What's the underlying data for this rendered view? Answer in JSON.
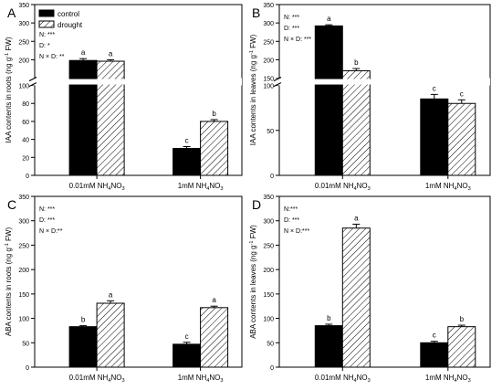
{
  "colors": {
    "control": "#000000",
    "drought_hatch": "#000000",
    "background": "#ffffff"
  },
  "legend": {
    "control": "control",
    "drought": "drought"
  },
  "chart_data": [
    {
      "panel": "A",
      "type": "bar",
      "ylabel": "IAA contents in roots (ng g-1 FW)",
      "categories": [
        "0.01mM NH4NO3",
        "1mM NH4NO3"
      ],
      "series": [
        {
          "name": "control",
          "values": [
            198,
            30
          ],
          "errors": [
            5,
            2
          ]
        },
        {
          "name": "drought",
          "values": [
            196,
            60
          ],
          "errors": [
            4,
            2
          ]
        }
      ],
      "letters": [
        [
          "a",
          "a"
        ],
        [
          "c",
          "b"
        ]
      ],
      "ylim": [
        0,
        350
      ],
      "axis_break": [
        100,
        150
      ],
      "yticks": [
        0,
        20,
        40,
        60,
        80,
        100,
        200,
        250,
        300,
        350
      ],
      "stats": [
        "N: ***",
        "D: *",
        "N × D: **"
      ],
      "legend_position": "top-left"
    },
    {
      "panel": "B",
      "type": "bar",
      "ylabel": "IAA contents in leaves (ng g-1 FW)",
      "categories": [
        "0.01mM NH4NO3",
        "1mM NH4NO3"
      ],
      "series": [
        {
          "name": "control",
          "values": [
            292,
            85
          ],
          "errors": [
            3,
            5
          ]
        },
        {
          "name": "drought",
          "values": [
            170,
            80
          ],
          "errors": [
            6,
            4
          ]
        }
      ],
      "letters": [
        [
          "a",
          "b"
        ],
        [
          "c",
          "c"
        ]
      ],
      "ylim": [
        0,
        350
      ],
      "axis_break": [
        100,
        150
      ],
      "yticks": [
        0,
        50,
        100,
        150,
        200,
        250,
        300,
        350
      ],
      "stats": [
        "N: ***",
        "D: ***",
        "N × D: ***"
      ]
    },
    {
      "panel": "C",
      "type": "bar",
      "ylabel": "ABA contents in roots (ng g-1 FW)",
      "categories": [
        "0.01mM NH4NO3",
        "1mM NH4NO3"
      ],
      "series": [
        {
          "name": "control",
          "values": [
            83,
            47
          ],
          "errors": [
            2,
            4
          ]
        },
        {
          "name": "drought",
          "values": [
            131,
            122
          ],
          "errors": [
            5,
            3
          ]
        }
      ],
      "letters": [
        [
          "b",
          "a"
        ],
        [
          "c",
          "a"
        ]
      ],
      "ylim": [
        0,
        350
      ],
      "yticks": [
        0,
        50,
        100,
        150,
        200,
        250,
        300,
        350
      ],
      "stats": [
        "N: ***",
        "D: ***",
        "N × D:**"
      ]
    },
    {
      "panel": "D",
      "type": "bar",
      "ylabel": "ABA contents in leaves (ng g-1 FW)",
      "categories": [
        "0.01mM NH4NO3",
        "1mM NH4NO3"
      ],
      "series": [
        {
          "name": "control",
          "values": [
            85,
            50
          ],
          "errors": [
            3,
            3
          ]
        },
        {
          "name": "drought",
          "values": [
            285,
            83
          ],
          "errors": [
            8,
            3
          ]
        }
      ],
      "letters": [
        [
          "b",
          "a"
        ],
        [
          "c",
          "b"
        ]
      ],
      "ylim": [
        0,
        350
      ],
      "yticks": [
        0,
        50,
        100,
        150,
        200,
        250,
        300,
        350
      ],
      "stats": [
        "N:***",
        "D: ***",
        "N × D:***"
      ]
    }
  ]
}
